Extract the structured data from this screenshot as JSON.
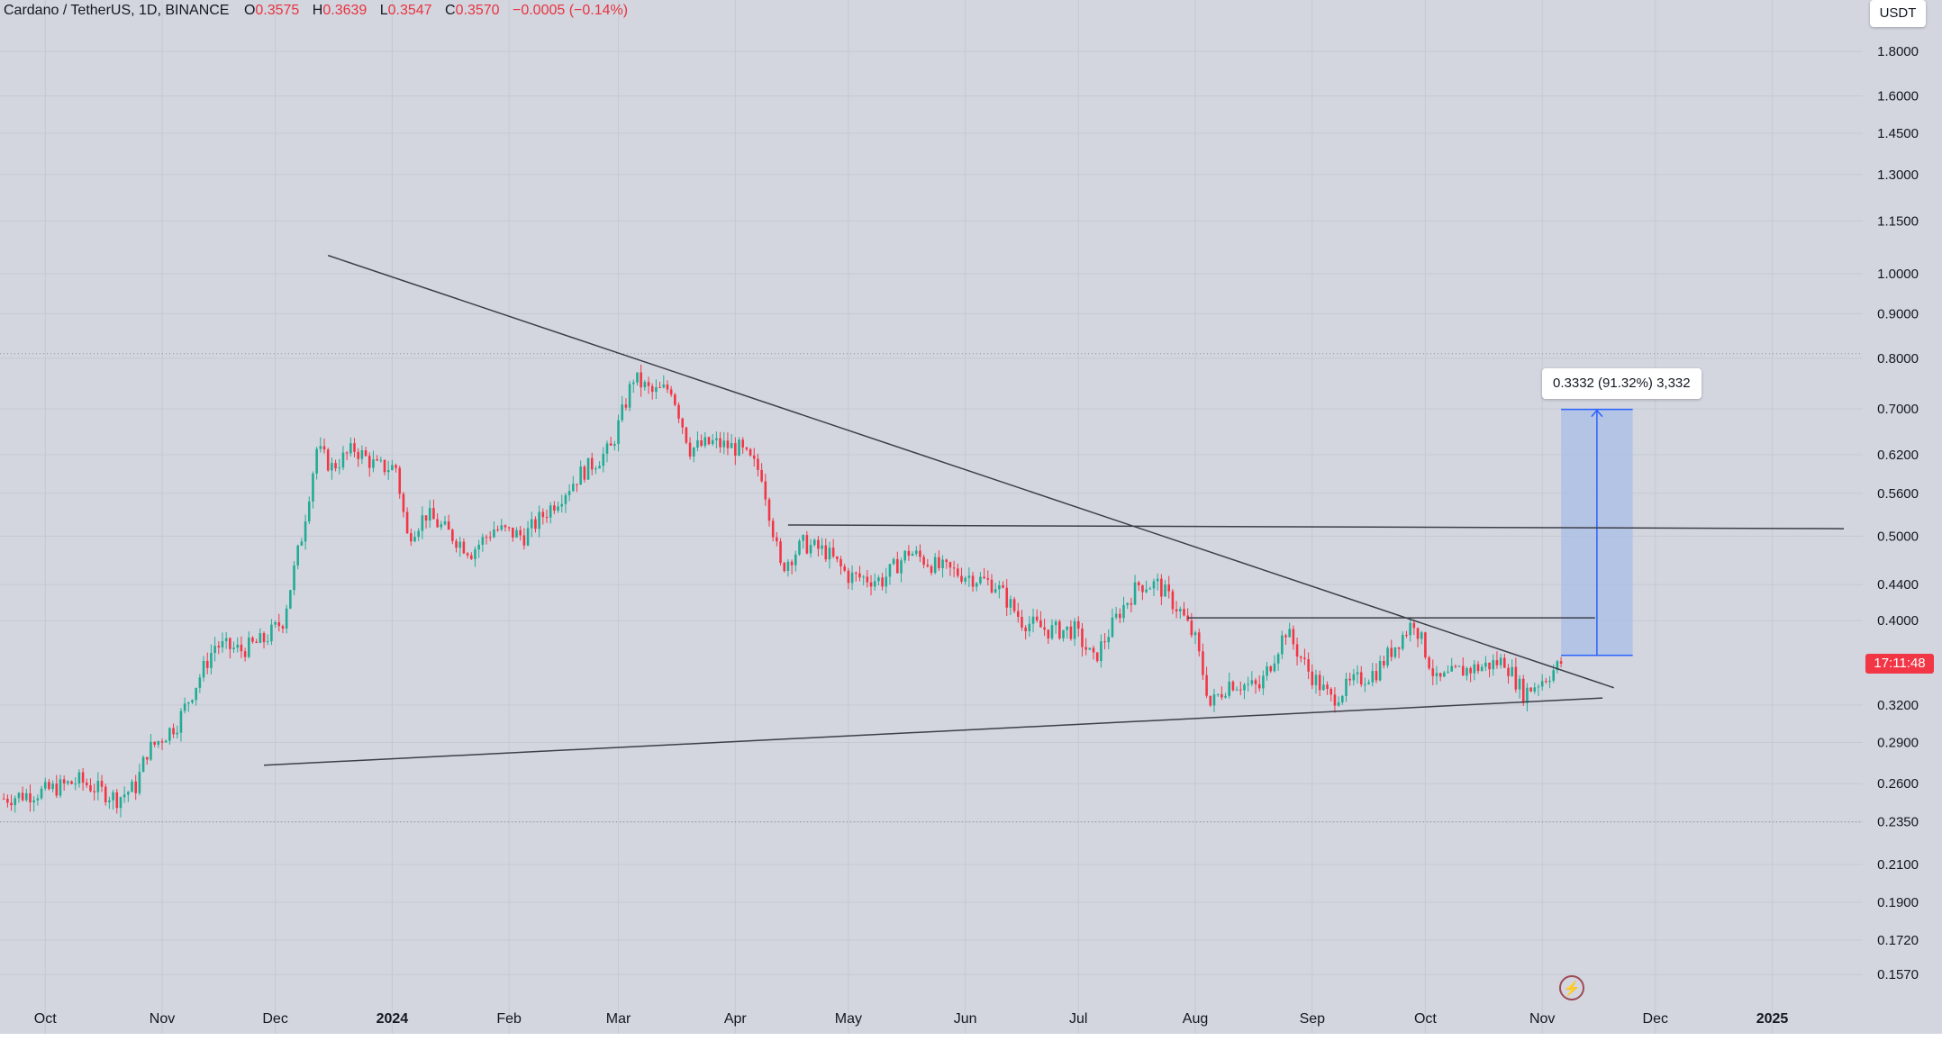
{
  "header": {
    "symbol": "Cardano / TetherUS, 1D, BINANCE",
    "open_label": "O",
    "open": "0.3575",
    "high_label": "H",
    "high": "0.3639",
    "low_label": "L",
    "low": "0.3547",
    "close_label": "C",
    "close": "0.3570",
    "change": "−0.0005 (−0.14%)"
  },
  "currency": "USDT",
  "price_tag": "17:11:48",
  "measure_label": "0.3332 (91.32%) 3,332",
  "icons": {
    "alert": "lightning-icon"
  },
  "colors": {
    "background": "#d3d6df",
    "up_candle": "#22ab94",
    "down_candle": "#f23645",
    "measure_fill": "#a9bde6",
    "measure_line": "#2962ff",
    "trendline": "#3c3f4a"
  },
  "chart_data": {
    "type": "candlestick",
    "scale": "log",
    "yaxis_ticks": [
      "1.8000",
      "1.6000",
      "1.4500",
      "1.3000",
      "1.1500",
      "1.0000",
      "0.9000",
      "0.8000",
      "0.7000",
      "0.6200",
      "0.5600",
      "0.5000",
      "0.4400",
      "0.4000",
      "0.3200",
      "0.2900",
      "0.2600",
      "0.2350",
      "0.2100",
      "0.1900",
      "0.1720",
      "0.1570"
    ],
    "xaxis_ticks": [
      "Oct",
      "Nov",
      "Dec",
      "2024",
      "Feb",
      "Mar",
      "Apr",
      "May",
      "Jun",
      "Jul",
      "Aug",
      "Sep",
      "Oct",
      "Nov",
      "Dec",
      "2025"
    ],
    "x_range": [
      "2023-09-19",
      "2025-01-25"
    ],
    "y_range": [
      0.1505,
      1.92
    ],
    "candles_start": "2023-09-20",
    "candles_end": "2024-11-06",
    "close_keypoints": [
      [
        "2023-09-20",
        0.25
      ],
      [
        "2023-10-01",
        0.255
      ],
      [
        "2023-10-10",
        0.262
      ],
      [
        "2023-10-20",
        0.25
      ],
      [
        "2023-10-25",
        0.258
      ],
      [
        "2023-10-28",
        0.283
      ],
      [
        "2023-11-05",
        0.305
      ],
      [
        "2023-11-15",
        0.375
      ],
      [
        "2023-11-22",
        0.37
      ],
      [
        "2023-11-28",
        0.38
      ],
      [
        "2023-12-03",
        0.4
      ],
      [
        "2023-12-08",
        0.5
      ],
      [
        "2023-12-12",
        0.63
      ],
      [
        "2023-12-16",
        0.6
      ],
      [
        "2023-12-22",
        0.63
      ],
      [
        "2023-12-28",
        0.6
      ],
      [
        "2024-01-02",
        0.6
      ],
      [
        "2024-01-05",
        0.5
      ],
      [
        "2024-01-10",
        0.53
      ],
      [
        "2024-01-17",
        0.5
      ],
      [
        "2024-01-22",
        0.48
      ],
      [
        "2024-01-28",
        0.51
      ],
      [
        "2024-02-05",
        0.5
      ],
      [
        "2024-02-12",
        0.54
      ],
      [
        "2024-02-20",
        0.59
      ],
      [
        "2024-02-28",
        0.63
      ],
      [
        "2024-03-05",
        0.76
      ],
      [
        "2024-03-10",
        0.73
      ],
      [
        "2024-03-15",
        0.74
      ],
      [
        "2024-03-20",
        0.63
      ],
      [
        "2024-03-26",
        0.64
      ],
      [
        "2024-04-02",
        0.63
      ],
      [
        "2024-04-08",
        0.59
      ],
      [
        "2024-04-13",
        0.46
      ],
      [
        "2024-04-19",
        0.49
      ],
      [
        "2024-04-25",
        0.48
      ],
      [
        "2024-05-01",
        0.45
      ],
      [
        "2024-05-10",
        0.445
      ],
      [
        "2024-05-17",
        0.48
      ],
      [
        "2024-05-25",
        0.46
      ],
      [
        "2024-06-02",
        0.45
      ],
      [
        "2024-06-09",
        0.44
      ],
      [
        "2024-06-16",
        0.4
      ],
      [
        "2024-06-23",
        0.39
      ],
      [
        "2024-06-30",
        0.39
      ],
      [
        "2024-07-05",
        0.36
      ],
      [
        "2024-07-12",
        0.41
      ],
      [
        "2024-07-17",
        0.44
      ],
      [
        "2024-07-22",
        0.44
      ],
      [
        "2024-07-28",
        0.41
      ],
      [
        "2024-08-01",
        0.38
      ],
      [
        "2024-08-05",
        0.32
      ],
      [
        "2024-08-10",
        0.34
      ],
      [
        "2024-08-18",
        0.335
      ],
      [
        "2024-08-25",
        0.39
      ],
      [
        "2024-08-31",
        0.35
      ],
      [
        "2024-09-06",
        0.325
      ],
      [
        "2024-09-12",
        0.34
      ],
      [
        "2024-09-18",
        0.35
      ],
      [
        "2024-09-24",
        0.38
      ],
      [
        "2024-09-28",
        0.4
      ],
      [
        "2024-10-04",
        0.34
      ],
      [
        "2024-10-10",
        0.35
      ],
      [
        "2024-10-17",
        0.355
      ],
      [
        "2024-10-22",
        0.36
      ],
      [
        "2024-10-27",
        0.33
      ],
      [
        "2024-11-02",
        0.345
      ],
      [
        "2024-11-06",
        0.357
      ]
    ],
    "trendlines": [
      {
        "name": "descending",
        "start": [
          "2023-12-15",
          1.05
        ],
        "end": [
          "2024-11-20",
          0.335
        ]
      },
      {
        "name": "ascending",
        "start": [
          "2023-11-28",
          0.273
        ],
        "end": [
          "2024-11-17",
          0.326
        ]
      },
      {
        "name": "horizontal-upper",
        "start": [
          "2024-04-15",
          0.515
        ],
        "end": [
          "2025-01-20",
          0.51
        ]
      },
      {
        "name": "horizontal-lower",
        "start": [
          "2024-07-30",
          0.403
        ],
        "end": [
          "2024-11-15",
          0.403
        ]
      }
    ],
    "dotted_lines": [
      0.81,
      0.235
    ],
    "measure": {
      "from_date": "2024-11-06",
      "to_date": "2024-11-25",
      "low": 0.365,
      "high": 0.699,
      "change": 0.3332,
      "change_pct": 91.32,
      "ticks": 3332
    }
  }
}
